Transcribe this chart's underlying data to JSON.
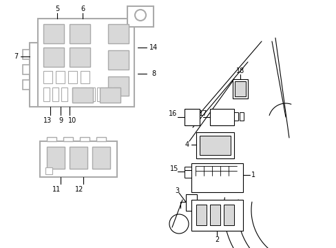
{
  "bg_color": "#ffffff",
  "line_color": "#000000",
  "gray_color": "#aaaaaa",
  "light_gray": "#d8d8d8",
  "fig_width": 4.89,
  "fig_height": 3.6,
  "dpi": 100,
  "label_fontsize": 7.0
}
